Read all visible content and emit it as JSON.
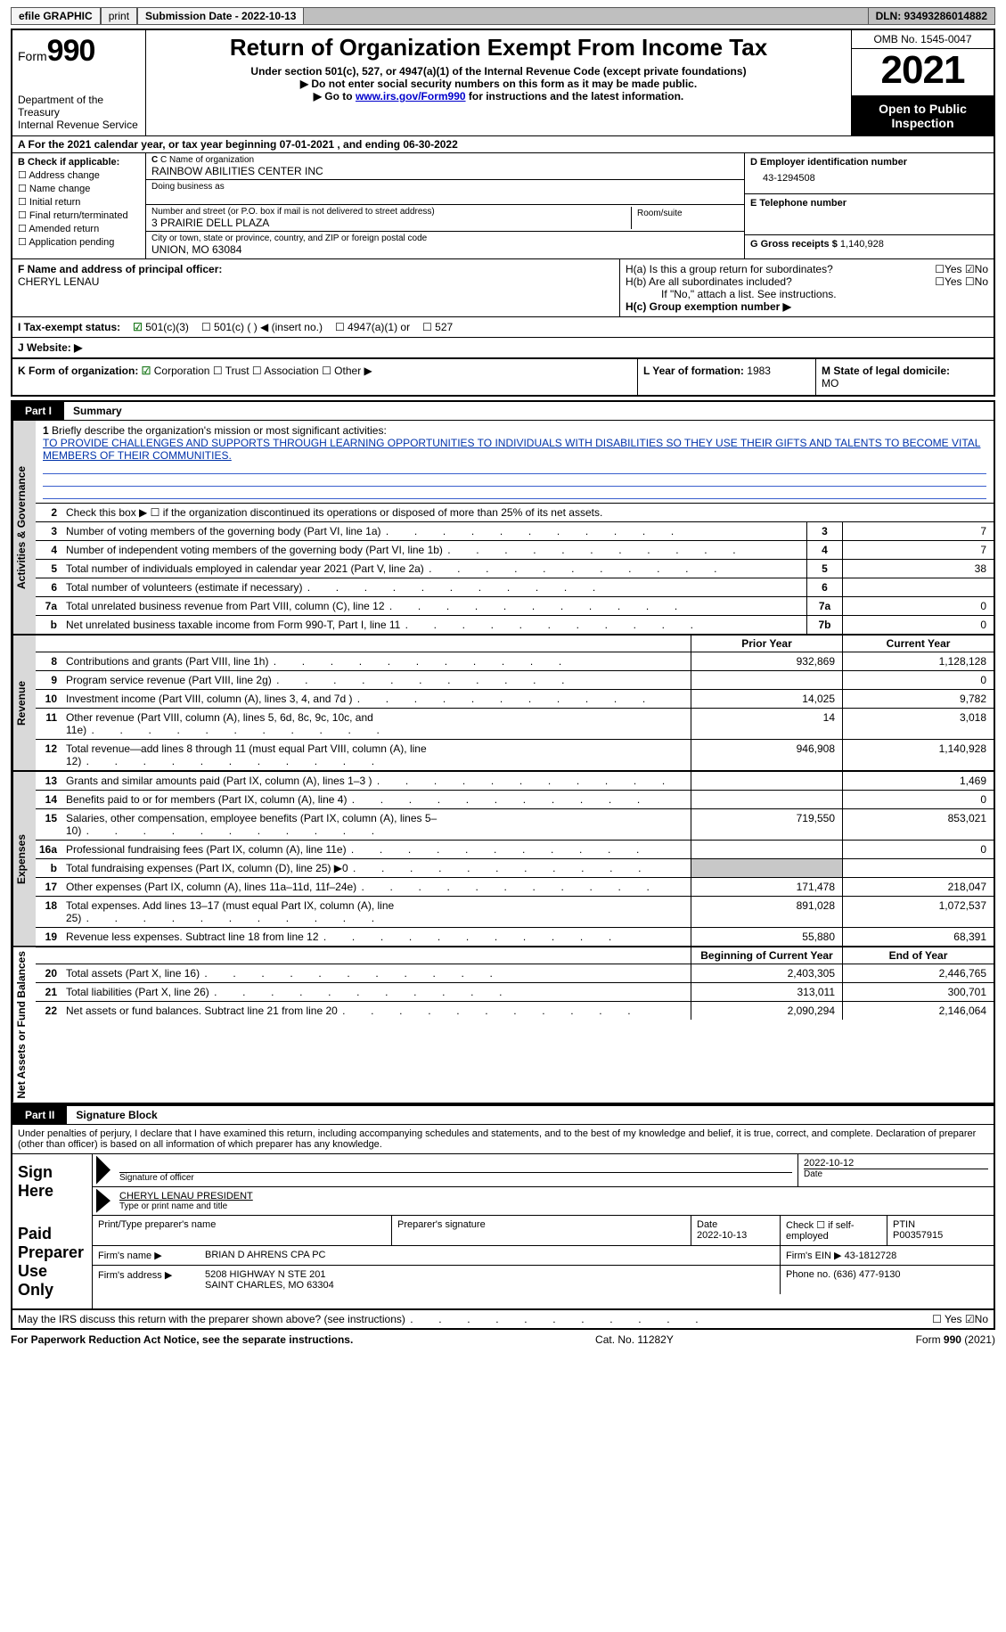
{
  "topbar": {
    "efile_label": "efile GRAPHIC",
    "print_btn": "print",
    "submission_label": "Submission Date - 2022-10-13",
    "dln_label": "DLN: 93493286014882"
  },
  "header": {
    "form_word": "Form",
    "form_num": "990",
    "dept": "Department of the Treasury",
    "irs": "Internal Revenue Service",
    "title": "Return of Organization Exempt From Income Tax",
    "sub1": "Under section 501(c), 527, or 4947(a)(1) of the Internal Revenue Code (except private foundations)",
    "sub2": "Do not enter social security numbers on this form as it may be made public.",
    "sub3_pre": "Go to ",
    "sub3_link": "www.irs.gov/Form990",
    "sub3_post": " for instructions and the latest information.",
    "omb": "OMB No. 1545-0047",
    "year": "2021",
    "inspect": "Open to Public Inspection"
  },
  "period": {
    "text": "A For the 2021 calendar year, or tax year beginning 07-01-2021     , and ending 06-30-2022"
  },
  "entity": {
    "b_label": "B Check if applicable:",
    "b_opts": [
      "Address change",
      "Name change",
      "Initial return",
      "Final return/terminated",
      "Amended return",
      "Application pending"
    ],
    "c_name_lab": "C Name of organization",
    "c_name": "RAINBOW ABILITIES CENTER INC",
    "dba_lab": "Doing business as",
    "addr_lab": "Number and street (or P.O. box if mail is not delivered to street address)",
    "room_lab": "Room/suite",
    "addr": "3 PRAIRIE DELL PLAZA",
    "city_lab": "City or town, state or province, country, and ZIP or foreign postal code",
    "city": "UNION, MO  63084",
    "d_lab": "D Employer identification number",
    "d_val": "43-1294508",
    "e_lab": "E Telephone number",
    "g_lab": "G Gross receipts $",
    "g_val": "1,140,928"
  },
  "fh": {
    "f_lab": "F Name and address of principal officer:",
    "f_val": "CHERYL LENAU",
    "ha_lab": "H(a)  Is this a group return for subordinates?",
    "hb_lab": "H(b)  Are all subordinates included?",
    "hb_note": "If \"No,\" attach a list. See instructions.",
    "hc_lab": "H(c)  Group exemption number ▶",
    "yes": "Yes",
    "no": "No"
  },
  "i": {
    "label": "I   Tax-exempt status:",
    "o1": "501(c)(3)",
    "o2": "501(c) (   ) ◀ (insert no.)",
    "o3": "4947(a)(1) or",
    "o4": "527"
  },
  "j": {
    "label": "J   Website: ▶"
  },
  "klm": {
    "k_lab": "K Form of organization:",
    "k_opts": [
      "Corporation",
      "Trust",
      "Association",
      "Other ▶"
    ],
    "l_lab": "L Year of formation:",
    "l_val": "1983",
    "m_lab": "M State of legal domicile:",
    "m_val": "MO"
  },
  "part1": {
    "tag": "Part I",
    "title": "Summary",
    "mission_lab": "Briefly describe the organization's mission or most significant activities:",
    "mission": "TO PROVIDE CHALLENGES AND SUPPORTS THROUGH LEARNING OPPORTUNITIES TO INDIVIDUALS WITH DISABILITIES SO THEY USE THEIR GIFTS AND TALENTS TO BECOME VITAL MEMBERS OF THEIR COMMUNITIES.",
    "line2": "Check this box ▶ ☐  if the organization discontinued its operations or disposed of more than 25% of its net assets.",
    "prior_hdr": "Prior Year",
    "curr_hdr": "Current Year",
    "boy_hdr": "Beginning of Current Year",
    "eoy_hdr": "End of Year",
    "sect_activities": "Activities & Governance",
    "sect_revenue": "Revenue",
    "sect_expenses": "Expenses",
    "sect_net": "Net Assets or Fund Balances",
    "lines_top": [
      {
        "n": "3",
        "d": "Number of voting members of the governing body (Part VI, line 1a)",
        "box": "3",
        "v": "7"
      },
      {
        "n": "4",
        "d": "Number of independent voting members of the governing body (Part VI, line 1b)",
        "box": "4",
        "v": "7"
      },
      {
        "n": "5",
        "d": "Total number of individuals employed in calendar year 2021 (Part V, line 2a)",
        "box": "5",
        "v": "38"
      },
      {
        "n": "6",
        "d": "Total number of volunteers (estimate if necessary)",
        "box": "6",
        "v": ""
      },
      {
        "n": "7a",
        "d": "Total unrelated business revenue from Part VIII, column (C), line 12",
        "box": "7a",
        "v": "0"
      },
      {
        "n": "b",
        "d": "Net unrelated business taxable income from Form 990-T, Part I, line 11",
        "box": "7b",
        "v": "0"
      }
    ],
    "lines_rev": [
      {
        "n": "8",
        "d": "Contributions and grants (Part VIII, line 1h)",
        "p": "932,869",
        "c": "1,128,128"
      },
      {
        "n": "9",
        "d": "Program service revenue (Part VIII, line 2g)",
        "p": "",
        "c": "0"
      },
      {
        "n": "10",
        "d": "Investment income (Part VIII, column (A), lines 3, 4, and 7d )",
        "p": "14,025",
        "c": "9,782"
      },
      {
        "n": "11",
        "d": "Other revenue (Part VIII, column (A), lines 5, 6d, 8c, 9c, 10c, and 11e)",
        "p": "14",
        "c": "3,018"
      },
      {
        "n": "12",
        "d": "Total revenue—add lines 8 through 11 (must equal Part VIII, column (A), line 12)",
        "p": "946,908",
        "c": "1,140,928"
      }
    ],
    "lines_exp": [
      {
        "n": "13",
        "d": "Grants and similar amounts paid (Part IX, column (A), lines 1–3 )",
        "p": "",
        "c": "1,469"
      },
      {
        "n": "14",
        "d": "Benefits paid to or for members (Part IX, column (A), line 4)",
        "p": "",
        "c": "0"
      },
      {
        "n": "15",
        "d": "Salaries, other compensation, employee benefits (Part IX, column (A), lines 5–10)",
        "p": "719,550",
        "c": "853,021"
      },
      {
        "n": "16a",
        "d": "Professional fundraising fees (Part IX, column (A), line 11e)",
        "p": "",
        "c": "0"
      },
      {
        "n": "b",
        "d": "Total fundraising expenses (Part IX, column (D), line 25) ▶0",
        "p": "SHADE",
        "c": "SHADE"
      },
      {
        "n": "17",
        "d": "Other expenses (Part IX, column (A), lines 11a–11d, 11f–24e)",
        "p": "171,478",
        "c": "218,047"
      },
      {
        "n": "18",
        "d": "Total expenses. Add lines 13–17 (must equal Part IX, column (A), line 25)",
        "p": "891,028",
        "c": "1,072,537"
      },
      {
        "n": "19",
        "d": "Revenue less expenses. Subtract line 18 from line 12",
        "p": "55,880",
        "c": "68,391"
      }
    ],
    "lines_net": [
      {
        "n": "20",
        "d": "Total assets (Part X, line 16)",
        "p": "2,403,305",
        "c": "2,446,765"
      },
      {
        "n": "21",
        "d": "Total liabilities (Part X, line 26)",
        "p": "313,011",
        "c": "300,701"
      },
      {
        "n": "22",
        "d": "Net assets or fund balances. Subtract line 21 from line 20",
        "p": "2,090,294",
        "c": "2,146,064"
      }
    ]
  },
  "part2": {
    "tag": "Part II",
    "title": "Signature Block",
    "decl": "Under penalties of perjury, I declare that I have examined this return, including accompanying schedules and statements, and to the best of my knowledge and belief, it is true, correct, and complete. Declaration of preparer (other than officer) is based on all information of which preparer has any knowledge.",
    "sign_here": "Sign Here",
    "sig_officer": "Signature of officer",
    "sig_date": "2022-10-12",
    "date_lab": "Date",
    "officer_name": "CHERYL LENAU  PRESIDENT",
    "type_name": "Type or print name and title",
    "paid": "Paid Preparer Use Only",
    "prep_name_lab": "Print/Type preparer's name",
    "prep_sig_lab": "Preparer's signature",
    "prep_date_lab": "Date",
    "prep_date": "2022-10-13",
    "self_emp": "Check ☐ if self-employed",
    "ptin_lab": "PTIN",
    "ptin": "P00357915",
    "firm_name_lab": "Firm's name      ▶",
    "firm_name": "BRIAN D AHRENS CPA PC",
    "firm_ein_lab": "Firm's EIN ▶",
    "firm_ein": "43-1812728",
    "firm_addr_lab": "Firm's address ▶",
    "firm_addr1": "5208 HIGHWAY N STE 201",
    "firm_addr2": "SAINT CHARLES, MO  63304",
    "phone_lab": "Phone no.",
    "phone": "(636) 477-9130",
    "discuss": "May the IRS discuss this return with the preparer shown above? (see instructions)",
    "yes": "Yes",
    "no": "No"
  },
  "footer": {
    "left": "For Paperwork Reduction Act Notice, see the separate instructions.",
    "mid": "Cat. No. 11282Y",
    "right": "Form 990 (2021)"
  }
}
